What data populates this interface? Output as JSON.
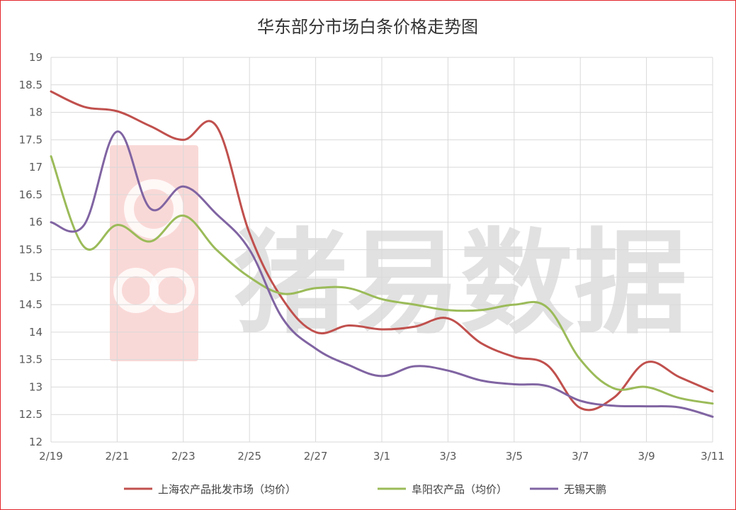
{
  "chart_data": {
    "type": "line",
    "title": "华东部分市场白条价格走势图",
    "watermark_text": "猪易数据",
    "x": [
      "2/19",
      "2/20",
      "2/21",
      "2/22",
      "2/23",
      "2/24",
      "2/25",
      "2/26",
      "2/27",
      "2/28",
      "3/1",
      "3/2",
      "3/3",
      "3/4",
      "3/5",
      "3/6",
      "3/7",
      "3/8",
      "3/9",
      "3/10",
      "3/11"
    ],
    "x_tick_labels": [
      "2/19",
      "2/21",
      "2/23",
      "2/25",
      "2/27",
      "3/1",
      "3/3",
      "3/5",
      "3/7",
      "3/9",
      "3/11"
    ],
    "ylim": [
      12,
      19
    ],
    "y_ticks": [
      12,
      12.5,
      13,
      13.5,
      14,
      14.5,
      15,
      15.5,
      16,
      16.5,
      17,
      17.5,
      18,
      18.5,
      19
    ],
    "y_tick_labels": [
      "12",
      "12.5",
      "13",
      "13.5",
      "14",
      "14.5",
      "15",
      "15.5",
      "16",
      "16.5",
      "17",
      "17.5",
      "18",
      "18.5",
      "19"
    ],
    "grid": true,
    "legend_position": "bottom",
    "series": [
      {
        "name": "上海农产品批发市场（均价）",
        "color": "#c0504d",
        "values": [
          18.38,
          18.1,
          18.02,
          17.75,
          17.5,
          17.75,
          15.8,
          14.6,
          14.0,
          14.12,
          14.05,
          14.1,
          14.25,
          13.8,
          13.55,
          13.4,
          12.62,
          12.8,
          13.45,
          13.18,
          12.92
        ]
      },
      {
        "name": "阜阳农产品（均价）",
        "color": "#9bbb59",
        "values": [
          17.2,
          15.55,
          15.95,
          15.65,
          16.12,
          15.5,
          15.0,
          14.7,
          14.8,
          14.8,
          14.6,
          14.5,
          14.4,
          14.4,
          14.5,
          14.45,
          13.5,
          12.98,
          13.0,
          12.8,
          12.7
        ]
      },
      {
        "name": "无锡天鹏",
        "color": "#8064a2",
        "values": [
          16.0,
          15.95,
          17.65,
          16.25,
          16.65,
          16.15,
          15.5,
          14.25,
          13.7,
          13.4,
          13.2,
          13.38,
          13.3,
          13.12,
          13.05,
          13.02,
          12.75,
          12.66,
          12.65,
          12.63,
          12.46
        ]
      }
    ]
  }
}
